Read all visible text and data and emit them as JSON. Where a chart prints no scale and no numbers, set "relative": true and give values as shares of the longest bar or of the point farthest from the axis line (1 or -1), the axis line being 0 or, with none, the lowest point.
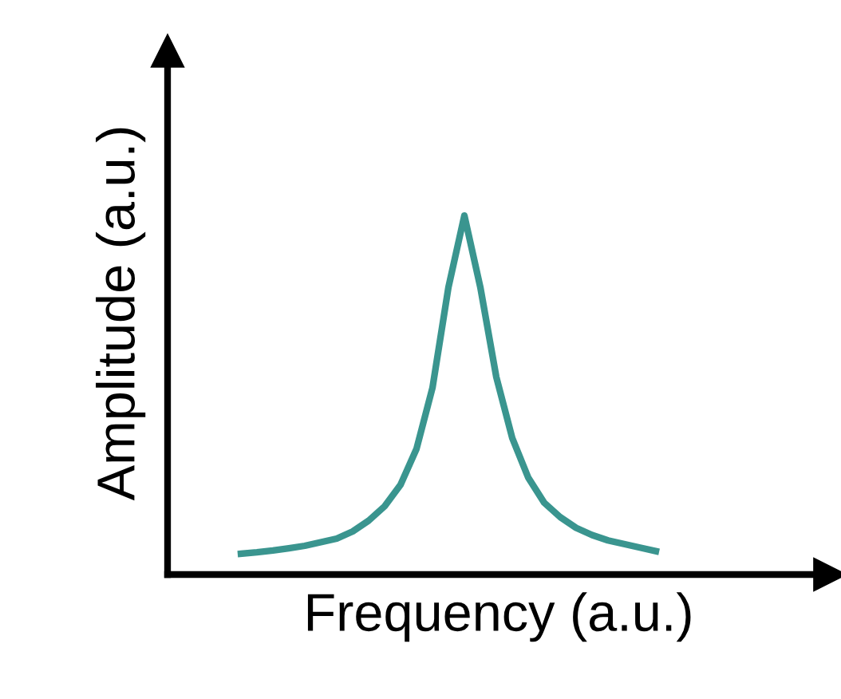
{
  "chart_data": {
    "type": "line",
    "relative": true,
    "xlabel": "Frequency (a.u.)",
    "ylabel": "Amplitude (a.u.)",
    "categories": [
      null,
      null,
      null,
      null,
      null,
      null,
      null,
      null,
      null,
      null,
      null,
      null,
      null,
      null,
      null,
      null,
      null,
      null,
      null,
      null,
      null,
      null,
      null,
      null,
      null,
      null,
      null
    ],
    "series": [
      {
        "color": "#3a958f",
        "values": [
          0.058,
          0.062,
          0.067,
          0.073,
          0.08,
          0.09,
          0.1,
          0.12,
          0.15,
          0.19,
          0.25,
          0.35,
          0.52,
          0.8,
          1.0,
          0.8,
          0.55,
          0.38,
          0.27,
          0.2,
          0.16,
          0.13,
          0.11,
          0.095,
          0.085,
          0.075,
          0.065
        ]
      }
    ],
    "tick_labels": false,
    "marker": "none",
    "line_style": "solid"
  }
}
